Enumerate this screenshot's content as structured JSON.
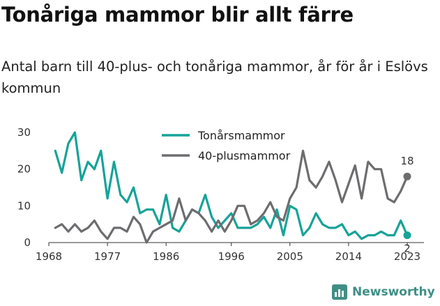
{
  "title": "Tonåriga mammor blir allt färre",
  "subtitle": "Antal barn till 40-plus- och tonåriga mammor, år för år i Eslövs kommun",
  "brand": {
    "name": "Newsworthy",
    "icon": "newsworthy-logo-icon",
    "color": "#3f8f86"
  },
  "chart_data": {
    "type": "line",
    "title": "",
    "xlabel": "",
    "ylabel": "",
    "grid": false,
    "legend_position": "top-center",
    "xlim": [
      1968,
      2023
    ],
    "ylim": [
      0,
      30
    ],
    "x_ticks": [
      1968,
      1977,
      1986,
      1996,
      2005,
      2014,
      2023
    ],
    "y_ticks": [
      0,
      10,
      20,
      30
    ],
    "x": [
      1969,
      1970,
      1971,
      1972,
      1973,
      1974,
      1975,
      1976,
      1977,
      1978,
      1979,
      1980,
      1981,
      1982,
      1983,
      1984,
      1985,
      1986,
      1987,
      1988,
      1989,
      1990,
      1991,
      1992,
      1993,
      1994,
      1995,
      1996,
      1997,
      1998,
      1999,
      2000,
      2001,
      2002,
      2003,
      2004,
      2005,
      2006,
      2007,
      2008,
      2009,
      2010,
      2011,
      2012,
      2013,
      2014,
      2015,
      2016,
      2017,
      2018,
      2019,
      2020,
      2021,
      2022,
      2023
    ],
    "series": [
      {
        "name": "Tonårsmammor",
        "color": "#17a398",
        "end_label": "2",
        "values": [
          25,
          19,
          27,
          30,
          17,
          22,
          20,
          25,
          12,
          22,
          13,
          11,
          15,
          8,
          9,
          9,
          5,
          13,
          4,
          3,
          6,
          9,
          8,
          13,
          7,
          4,
          6,
          8,
          4,
          4,
          4,
          5,
          7,
          4,
          9,
          2,
          10,
          9,
          2,
          4,
          8,
          5,
          4,
          4,
          5,
          2,
          3,
          1,
          2,
          2,
          3,
          2,
          2,
          6,
          2
        ]
      },
      {
        "name": "40-plusmammor",
        "color": "#6d6d70",
        "end_label": "18",
        "values": [
          4,
          5,
          3,
          5,
          3,
          4,
          6,
          3,
          1,
          4,
          4,
          3,
          7,
          5,
          0,
          3,
          4,
          5,
          6,
          12,
          6,
          9,
          8,
          6,
          3,
          6,
          3,
          6,
          10,
          10,
          5,
          6,
          8,
          11,
          7,
          6,
          12,
          15,
          25,
          17,
          15,
          18,
          22,
          17,
          11,
          16,
          21,
          12,
          22,
          20,
          20,
          12,
          11,
          14,
          18
        ]
      }
    ]
  }
}
